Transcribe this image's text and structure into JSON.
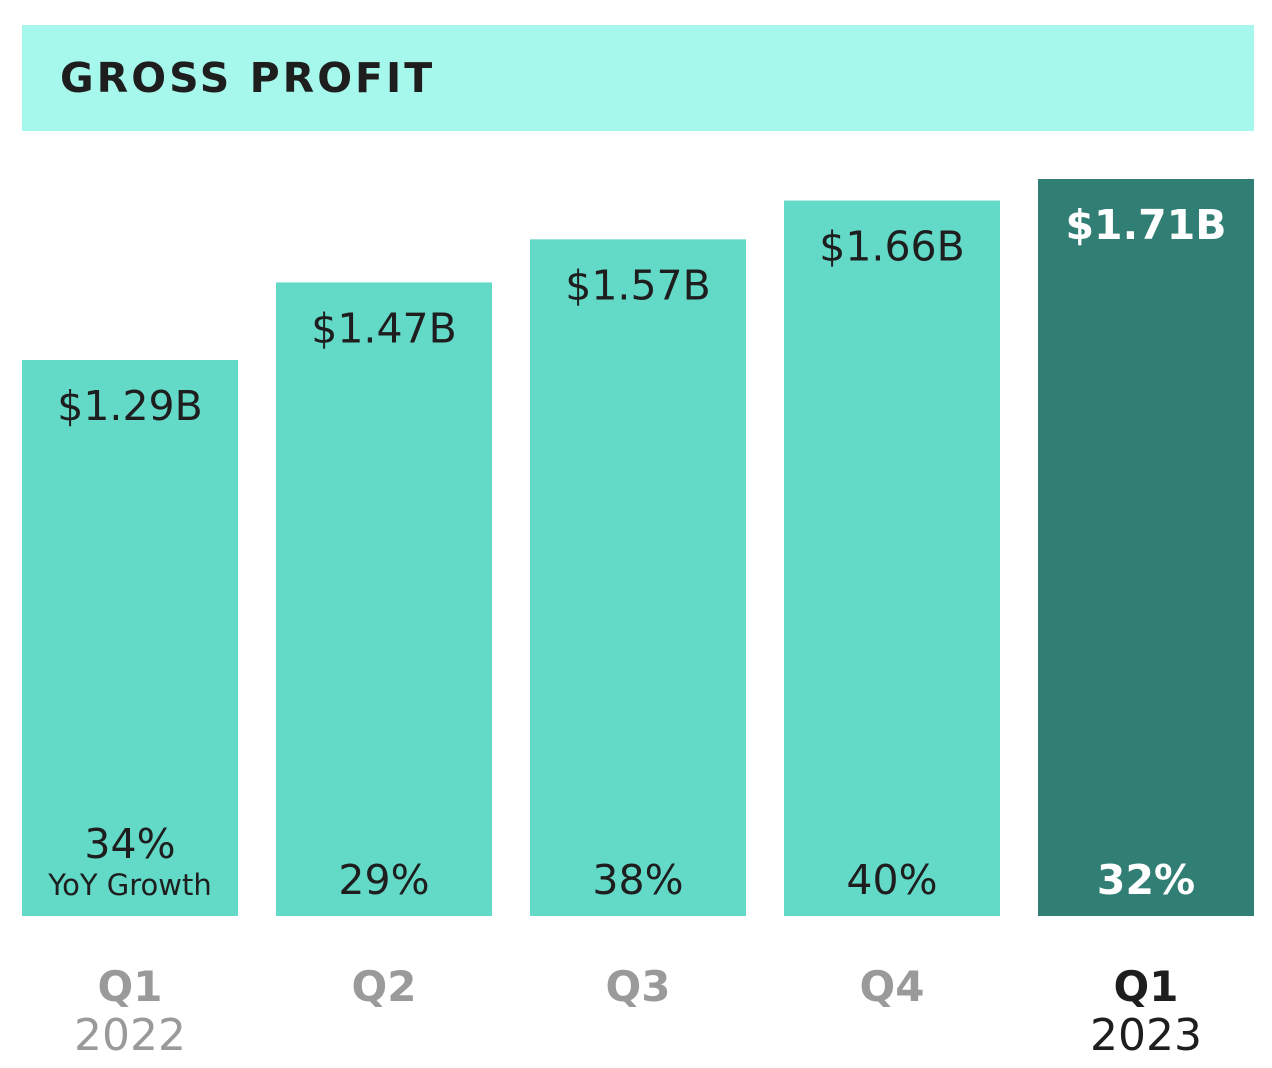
{
  "title": "GROSS PROFIT",
  "colors": {
    "header_bg": "#a5f8eb",
    "bar": "#63d9c8",
    "bar_highlight": "#307e74",
    "label_muted": "#9a9a9a",
    "label_dark": "#1e1e1e"
  },
  "chart_data": {
    "type": "bar",
    "title": "GROSS PROFIT",
    "categories": [
      "Q1",
      "Q2",
      "Q3",
      "Q4",
      "Q1"
    ],
    "years": [
      "2022",
      "",
      "",
      "",
      "2023"
    ],
    "values": [
      1.29,
      1.47,
      1.57,
      1.66,
      1.71
    ],
    "value_labels": [
      "$1.29B",
      "$1.47B",
      "$1.57B",
      "$1.66B",
      "$1.71B"
    ],
    "yoy_growth": [
      "34%",
      "29%",
      "38%",
      "40%",
      "32%"
    ],
    "yoy_growth_caption": "YoY Growth",
    "highlight_index": 4,
    "ylim": [
      0,
      1.71
    ],
    "grid": false,
    "legend": "none"
  }
}
